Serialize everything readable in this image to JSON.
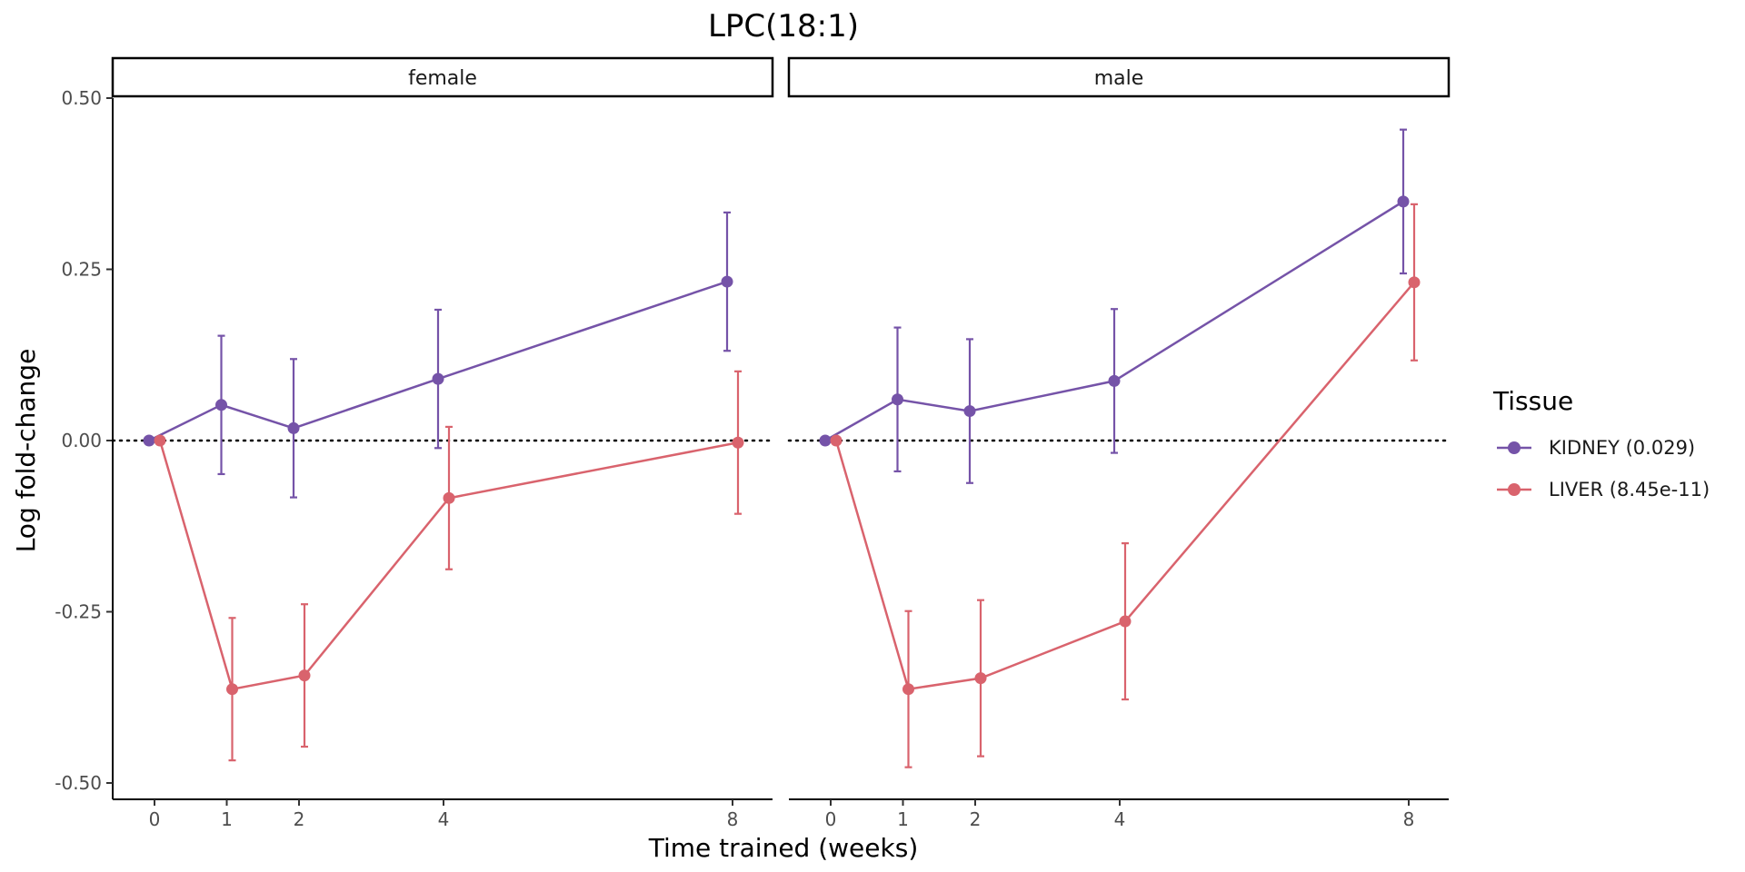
{
  "chart_data": {
    "type": "line",
    "title": "LPC(18:1)",
    "xlabel": "Time trained (weeks)",
    "ylabel": "Log fold-change",
    "x_ticks": [
      0,
      1,
      2,
      4,
      8
    ],
    "x_tick_labels": [
      "0",
      "1",
      "2",
      "4",
      "8"
    ],
    "y_ticks": [
      -0.5,
      -0.25,
      0,
      0.25,
      0.5
    ],
    "y_tick_labels": [
      "-0.50",
      "-0.25",
      "0.00",
      "0.25",
      "0.50"
    ],
    "xlim": [
      -0.6,
      8.6
    ],
    "ylim": [
      -0.52,
      0.52
    ],
    "reference_line": {
      "y": 0,
      "style": "dotted"
    },
    "grid": false,
    "legend": {
      "title": "Tissue",
      "placement": "right",
      "entries": [
        {
          "label": "KIDNEY (0.029)",
          "color": "#7553A8"
        },
        {
          "label": "LIVER (8.45e-11)",
          "color": "#D9636D"
        }
      ]
    },
    "panels": [
      {
        "label": "female",
        "series": [
          {
            "name": "KIDNEY (0.029)",
            "color": "#7553A8",
            "points": [
              {
                "x": 0,
                "y": 0.0
              },
              {
                "x": 1,
                "y": 0.052,
                "lower": -0.049,
                "upper": 0.153
              },
              {
                "x": 2,
                "y": 0.018,
                "lower": -0.083,
                "upper": 0.119
              },
              {
                "x": 4,
                "y": 0.09,
                "lower": -0.011,
                "upper": 0.191
              },
              {
                "x": 8,
                "y": 0.232,
                "lower": 0.131,
                "upper": 0.333
              }
            ]
          },
          {
            "name": "LIVER (8.45e-11)",
            "color": "#D9636D",
            "points": [
              {
                "x": 0,
                "y": 0.0
              },
              {
                "x": 1,
                "y": -0.363,
                "lower": -0.467,
                "upper": -0.259
              },
              {
                "x": 2,
                "y": -0.343,
                "lower": -0.447,
                "upper": -0.239
              },
              {
                "x": 4,
                "y": -0.084,
                "lower": -0.188,
                "upper": 0.02
              },
              {
                "x": 8,
                "y": -0.003,
                "lower": -0.107,
                "upper": 0.101
              }
            ]
          }
        ]
      },
      {
        "label": "male",
        "series": [
          {
            "name": "KIDNEY (0.029)",
            "color": "#7553A8",
            "points": [
              {
                "x": 0,
                "y": 0.0
              },
              {
                "x": 1,
                "y": 0.06,
                "lower": -0.045,
                "upper": 0.165
              },
              {
                "x": 2,
                "y": 0.043,
                "lower": -0.062,
                "upper": 0.148
              },
              {
                "x": 4,
                "y": 0.087,
                "lower": -0.018,
                "upper": 0.192
              },
              {
                "x": 8,
                "y": 0.349,
                "lower": 0.244,
                "upper": 0.454
              }
            ]
          },
          {
            "name": "LIVER (8.45e-11)",
            "color": "#D9636D",
            "points": [
              {
                "x": 0,
                "y": 0.0
              },
              {
                "x": 1,
                "y": -0.363,
                "lower": -0.477,
                "upper": -0.249
              },
              {
                "x": 2,
                "y": -0.347,
                "lower": -0.461,
                "upper": -0.233
              },
              {
                "x": 4,
                "y": -0.264,
                "lower": -0.378,
                "upper": -0.15
              },
              {
                "x": 8,
                "y": 0.231,
                "lower": 0.117,
                "upper": 0.345
              }
            ]
          }
        ]
      }
    ]
  }
}
